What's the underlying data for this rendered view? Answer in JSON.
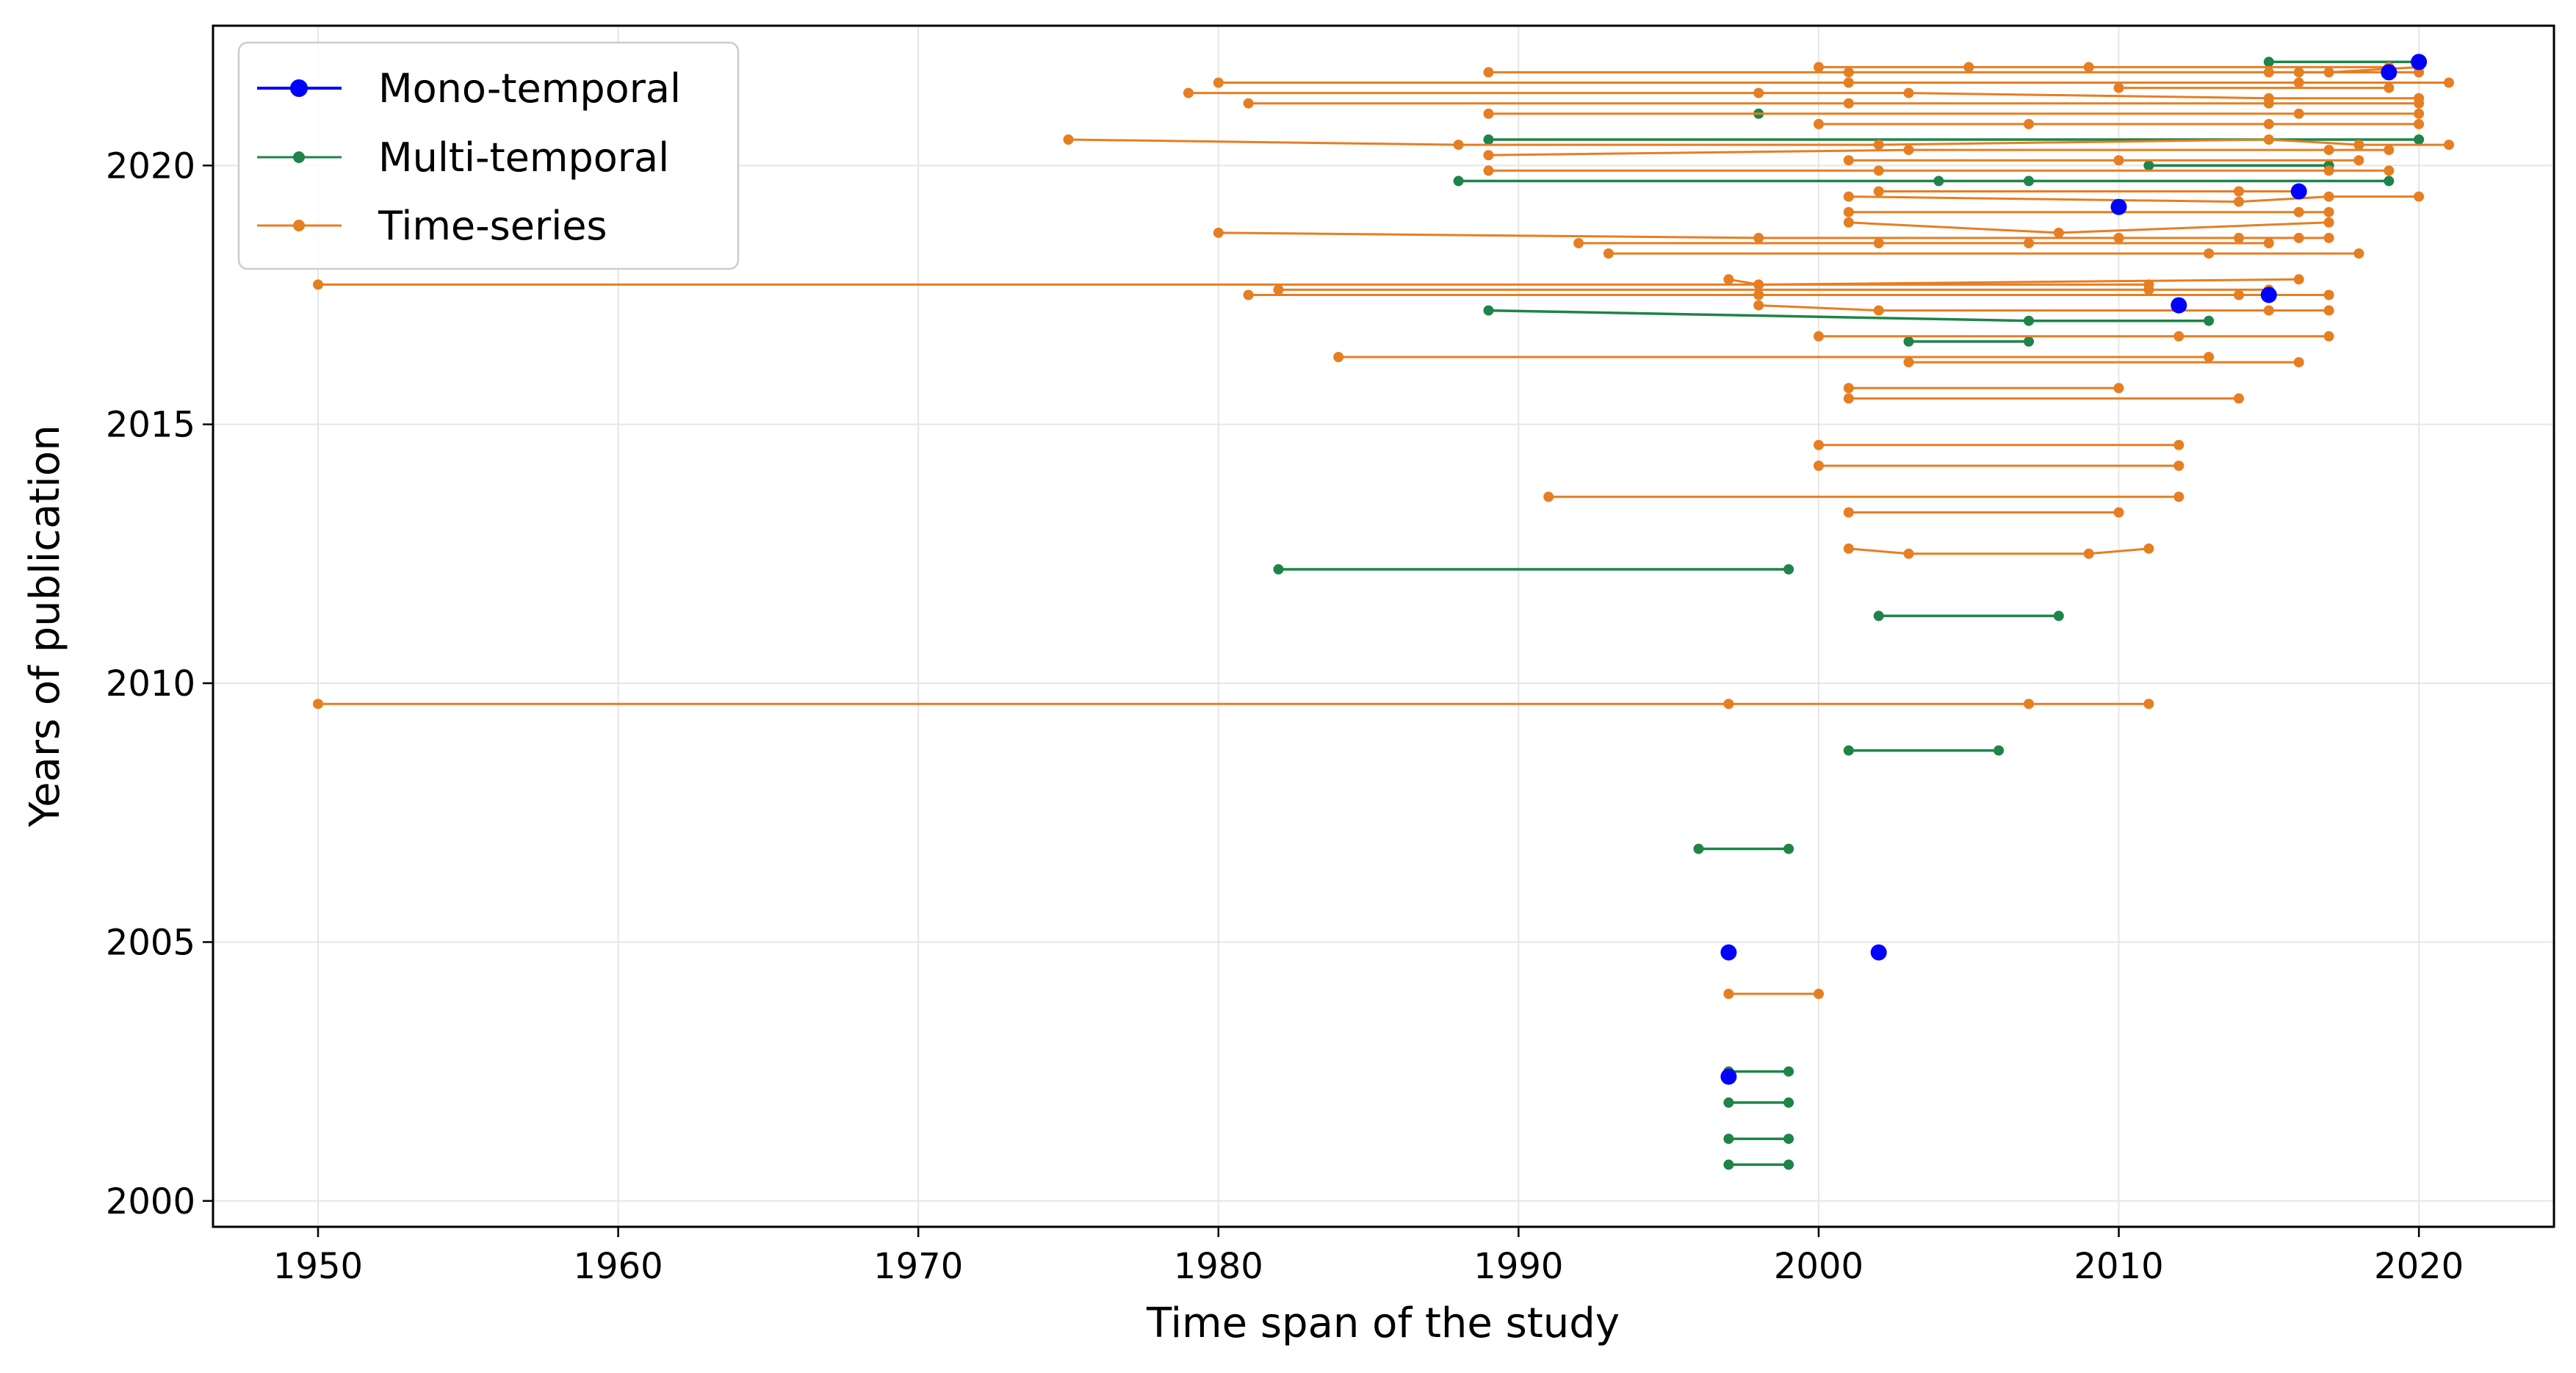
{
  "chart_data": {
    "type": "scatter",
    "title": "",
    "xlabel": "Time span of the study",
    "ylabel": "Years of publication",
    "xlim": [
      1946.5,
      2024.5
    ],
    "ylim": [
      1999.5,
      2022.7
    ],
    "xticks": [
      1950,
      1960,
      1970,
      1980,
      1990,
      2000,
      2010,
      2020
    ],
    "yticks": [
      2000,
      2005,
      2010,
      2015,
      2020
    ],
    "grid": true,
    "legend_position": "top-left",
    "colors": {
      "Mono-temporal": "#0000ff",
      "Multi-temporal": "#1e8449",
      "Time-series": "#e67e22"
    },
    "legend": [
      "Mono-temporal",
      "Multi-temporal",
      "Time-series"
    ],
    "series": [
      {
        "name": "Mono-temporal",
        "points": [
          [
            1997,
            2004.8
          ],
          [
            2002,
            2004.8
          ],
          [
            1997,
            2002.4
          ],
          [
            2010,
            2019.2
          ],
          [
            2012,
            2017.3
          ],
          [
            2015,
            2017.5
          ],
          [
            2016,
            2019.5
          ],
          [
            2019,
            2021.8
          ],
          [
            2020,
            2022.0
          ]
        ]
      },
      {
        "name": "Multi-temporal",
        "studies": [
          [
            [
              1997,
              2000.7
            ],
            [
              1999,
              2000.7
            ]
          ],
          [
            [
              1997,
              2001.2
            ],
            [
              1999,
              2001.2
            ]
          ],
          [
            [
              1997,
              2001.9
            ],
            [
              1999,
              2001.9
            ]
          ],
          [
            [
              1997,
              2002.5
            ],
            [
              1999,
              2002.5
            ]
          ],
          [
            [
              1996,
              2006.8
            ],
            [
              1999,
              2006.8
            ]
          ],
          [
            [
              2001,
              2008.7
            ],
            [
              2006,
              2008.7
            ]
          ],
          [
            [
              2002,
              2011.3
            ],
            [
              2008,
              2011.3
            ]
          ],
          [
            [
              1982,
              2012.2
            ],
            [
              1999,
              2012.2
            ]
          ],
          [
            [
              2003,
              2016.6
            ],
            [
              2007,
              2016.6
            ]
          ],
          [
            [
              1989,
              2017.2
            ],
            [
              2007,
              2017.0
            ],
            [
              2013,
              2017.0
            ]
          ],
          [
            [
              1988,
              2019.7
            ],
            [
              2004,
              2019.7
            ],
            [
              2007,
              2019.7
            ],
            [
              2019,
              2019.7
            ]
          ],
          [
            [
              2011,
              2020.0
            ],
            [
              2017,
              2020.0
            ]
          ],
          [
            [
              1989,
              2020.5
            ],
            [
              2020,
              2020.5
            ]
          ],
          [
            [
              1998,
              2021.0
            ]
          ],
          [
            [
              2015,
              2022.0
            ],
            [
              2020,
              2022.0
            ]
          ]
        ]
      },
      {
        "name": "Time-series",
        "studies": [
          [
            [
              1997,
              2004.0
            ],
            [
              2000,
              2004.0
            ]
          ],
          [
            [
              1950,
              2009.6
            ],
            [
              1997,
              2009.6
            ],
            [
              2007,
              2009.6
            ],
            [
              2011,
              2009.6
            ]
          ],
          [
            [
              2001,
              2012.6
            ],
            [
              2003,
              2012.5
            ],
            [
              2009,
              2012.5
            ],
            [
              2011,
              2012.6
            ]
          ],
          [
            [
              2001,
              2013.3
            ],
            [
              2010,
              2013.3
            ]
          ],
          [
            [
              1991,
              2013.6
            ],
            [
              2012,
              2013.6
            ]
          ],
          [
            [
              2000,
              2014.2
            ],
            [
              2012,
              2014.2
            ]
          ],
          [
            [
              2000,
              2014.6
            ],
            [
              2012,
              2014.6
            ]
          ],
          [
            [
              2001,
              2015.5
            ],
            [
              2014,
              2015.5
            ]
          ],
          [
            [
              2001,
              2015.7
            ],
            [
              2010,
              2015.7
            ]
          ],
          [
            [
              1984,
              2016.3
            ],
            [
              2013,
              2016.3
            ]
          ],
          [
            [
              2003,
              2016.2
            ],
            [
              2016,
              2016.2
            ]
          ],
          [
            [
              2000,
              2016.7
            ],
            [
              2012,
              2016.7
            ],
            [
              2017,
              2016.7
            ]
          ],
          [
            [
              1998,
              2017.3
            ],
            [
              2002,
              2017.2
            ],
            [
              2015,
              2017.2
            ],
            [
              2017,
              2017.2
            ]
          ],
          [
            [
              1981,
              2017.5
            ],
            [
              1998,
              2017.5
            ],
            [
              2014,
              2017.5
            ],
            [
              2017,
              2017.5
            ]
          ],
          [
            [
              1982,
              2017.6
            ],
            [
              2011,
              2017.6
            ],
            [
              2015,
              2017.6
            ]
          ],
          [
            [
              1997,
              2017.8
            ],
            [
              1998,
              2017.7
            ],
            [
              2016,
              2017.8
            ]
          ],
          [
            [
              1950,
              2017.7
            ],
            [
              2011,
              2017.7
            ]
          ],
          [
            [
              1993,
              2018.3
            ],
            [
              2013,
              2018.3
            ],
            [
              2018,
              2018.3
            ]
          ],
          [
            [
              1992,
              2018.5
            ],
            [
              2002,
              2018.5
            ],
            [
              2007,
              2018.5
            ],
            [
              2015,
              2018.5
            ]
          ],
          [
            [
              1980,
              2018.7
            ],
            [
              1998,
              2018.6
            ],
            [
              2010,
              2018.6
            ],
            [
              2014,
              2018.6
            ],
            [
              2016,
              2018.6
            ],
            [
              2017,
              2018.6
            ]
          ],
          [
            [
              2001,
              2018.9
            ],
            [
              2008,
              2018.7
            ],
            [
              2017,
              2018.9
            ]
          ],
          [
            [
              2001,
              2019.1
            ],
            [
              2016,
              2019.1
            ],
            [
              2017,
              2019.1
            ]
          ],
          [
            [
              2001,
              2019.4
            ],
            [
              2014,
              2019.3
            ],
            [
              2017,
              2019.4
            ],
            [
              2020,
              2019.4
            ]
          ],
          [
            [
              2002,
              2019.5
            ],
            [
              2014,
              2019.5
            ],
            [
              2016,
              2019.5
            ]
          ],
          [
            [
              1989,
              2019.9
            ],
            [
              2002,
              2019.9
            ],
            [
              2017,
              2019.9
            ],
            [
              2019,
              2019.9
            ]
          ],
          [
            [
              1989,
              2020.2
            ],
            [
              2003,
              2020.3
            ],
            [
              2017,
              2020.3
            ],
            [
              2019,
              2020.3
            ]
          ],
          [
            [
              2001,
              2020.1
            ],
            [
              2010,
              2020.1
            ],
            [
              2018,
              2020.1
            ]
          ],
          [
            [
              1975,
              2020.5
            ],
            [
              1988,
              2020.4
            ],
            [
              2002,
              2020.4
            ],
            [
              2015,
              2020.5
            ],
            [
              2018,
              2020.4
            ],
            [
              2021,
              2020.4
            ]
          ],
          [
            [
              2000,
              2020.8
            ],
            [
              2007,
              2020.8
            ],
            [
              2015,
              2020.8
            ],
            [
              2020,
              2020.8
            ]
          ],
          [
            [
              1989,
              2021.0
            ],
            [
              2016,
              2021.0
            ],
            [
              2020,
              2021.0
            ]
          ],
          [
            [
              1981,
              2021.2
            ],
            [
              2001,
              2021.2
            ],
            [
              2015,
              2021.2
            ],
            [
              2020,
              2021.2
            ]
          ],
          [
            [
              1979,
              2021.4
            ],
            [
              1998,
              2021.4
            ],
            [
              2003,
              2021.4
            ],
            [
              2015,
              2021.3
            ],
            [
              2020,
              2021.3
            ]
          ],
          [
            [
              1980,
              2021.6
            ],
            [
              2001,
              2021.6
            ],
            [
              2016,
              2021.6
            ],
            [
              2021,
              2021.6
            ]
          ],
          [
            [
              2010,
              2021.5
            ],
            [
              2019,
              2021.5
            ]
          ],
          [
            [
              1989,
              2021.8
            ],
            [
              2001,
              2021.8
            ],
            [
              2015,
              2021.8
            ],
            [
              2020,
              2021.8
            ]
          ],
          [
            [
              2000,
              2021.9
            ],
            [
              2005,
              2021.9
            ],
            [
              2009,
              2021.9
            ],
            [
              2019,
              2021.9
            ]
          ],
          [
            [
              2016,
              2021.8
            ],
            [
              2017,
              2021.8
            ],
            [
              2020,
              2021.9
            ]
          ]
        ]
      }
    ]
  }
}
